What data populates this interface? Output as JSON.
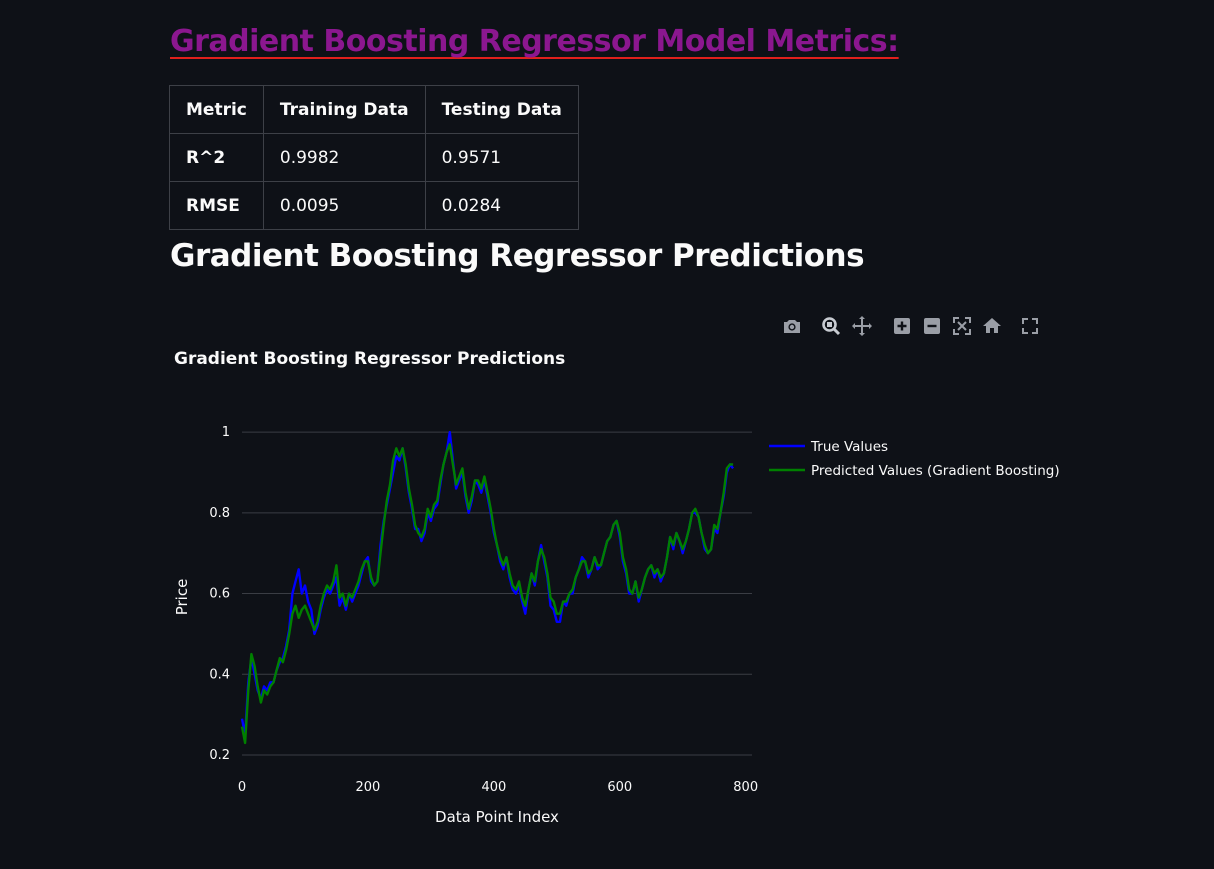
{
  "heading": "Gradient Boosting Regressor Model Metrics:",
  "metrics_table": {
    "headers": [
      "Metric",
      "Training Data",
      "Testing Data"
    ],
    "rows": [
      [
        "R^2",
        "0.9982",
        "0.9571"
      ],
      [
        "RMSE",
        "0.0095",
        "0.0284"
      ]
    ]
  },
  "subheading": "Gradient Boosting Regressor Predictions",
  "modebar": {
    "icons": [
      "camera-icon",
      "zoom-icon",
      "pan-icon",
      "zoom-in-icon",
      "zoom-out-icon",
      "autoscale-icon",
      "home-icon",
      "fullscreen-icon"
    ]
  },
  "colors": {
    "background": "#0e1117",
    "heading": "#8b178f",
    "heading_underline": "#e0201c",
    "true_series": "#0000ff",
    "pred_series": "#008000",
    "grid": "#3a3d44"
  },
  "chart_data": {
    "type": "line",
    "title": "Gradient Boosting Regressor Predictions",
    "xlabel": "Data Point Index",
    "ylabel": "Price",
    "xlim": [
      0,
      810
    ],
    "ylim": [
      0.2,
      1.03
    ],
    "xticks": [
      0,
      200,
      400,
      600,
      800
    ],
    "yticks": [
      0.2,
      0.4,
      0.6,
      0.8,
      1
    ],
    "grid": "horizontal",
    "legend_placement": "top-right-outside",
    "series": [
      {
        "name": "True Values",
        "color": "#0000ff",
        "points": [
          [
            0,
            0.29
          ],
          [
            5,
            0.25
          ],
          [
            10,
            0.38
          ],
          [
            15,
            0.44
          ],
          [
            20,
            0.4
          ],
          [
            25,
            0.36
          ],
          [
            30,
            0.34
          ],
          [
            35,
            0.37
          ],
          [
            40,
            0.36
          ],
          [
            45,
            0.38
          ],
          [
            50,
            0.38
          ],
          [
            55,
            0.41
          ],
          [
            60,
            0.43
          ],
          [
            65,
            0.44
          ],
          [
            70,
            0.47
          ],
          [
            75,
            0.51
          ],
          [
            80,
            0.6
          ],
          [
            85,
            0.63
          ],
          [
            90,
            0.66
          ],
          [
            95,
            0.6
          ],
          [
            100,
            0.62
          ],
          [
            105,
            0.58
          ],
          [
            110,
            0.56
          ],
          [
            115,
            0.5
          ],
          [
            120,
            0.52
          ],
          [
            125,
            0.56
          ],
          [
            130,
            0.59
          ],
          [
            135,
            0.61
          ],
          [
            140,
            0.6
          ],
          [
            145,
            0.62
          ],
          [
            150,
            0.64
          ],
          [
            155,
            0.57
          ],
          [
            160,
            0.59
          ],
          [
            165,
            0.56
          ],
          [
            170,
            0.6
          ],
          [
            175,
            0.58
          ],
          [
            180,
            0.6
          ],
          [
            185,
            0.62
          ],
          [
            190,
            0.65
          ],
          [
            195,
            0.68
          ],
          [
            200,
            0.69
          ],
          [
            205,
            0.63
          ],
          [
            210,
            0.62
          ],
          [
            215,
            0.63
          ],
          [
            220,
            0.72
          ],
          [
            225,
            0.78
          ],
          [
            230,
            0.82
          ],
          [
            235,
            0.86
          ],
          [
            240,
            0.9
          ],
          [
            245,
            0.94
          ],
          [
            250,
            0.93
          ],
          [
            255,
            0.96
          ],
          [
            260,
            0.91
          ],
          [
            265,
            0.85
          ],
          [
            270,
            0.81
          ],
          [
            275,
            0.76
          ],
          [
            280,
            0.76
          ],
          [
            285,
            0.73
          ],
          [
            290,
            0.75
          ],
          [
            295,
            0.8
          ],
          [
            300,
            0.78
          ],
          [
            305,
            0.81
          ],
          [
            310,
            0.82
          ],
          [
            315,
            0.87
          ],
          [
            320,
            0.92
          ],
          [
            325,
            0.95
          ],
          [
            330,
            1.0
          ],
          [
            335,
            0.93
          ],
          [
            340,
            0.86
          ],
          [
            345,
            0.88
          ],
          [
            350,
            0.9
          ],
          [
            355,
            0.84
          ],
          [
            360,
            0.8
          ],
          [
            365,
            0.83
          ],
          [
            370,
            0.88
          ],
          [
            375,
            0.87
          ],
          [
            380,
            0.85
          ],
          [
            385,
            0.88
          ],
          [
            390,
            0.84
          ],
          [
            395,
            0.8
          ],
          [
            400,
            0.75
          ],
          [
            405,
            0.72
          ],
          [
            410,
            0.68
          ],
          [
            415,
            0.66
          ],
          [
            420,
            0.69
          ],
          [
            425,
            0.64
          ],
          [
            430,
            0.61
          ],
          [
            435,
            0.6
          ],
          [
            440,
            0.62
          ],
          [
            445,
            0.58
          ],
          [
            450,
            0.55
          ],
          [
            455,
            0.61
          ],
          [
            460,
            0.65
          ],
          [
            465,
            0.62
          ],
          [
            470,
            0.68
          ],
          [
            475,
            0.72
          ],
          [
            480,
            0.68
          ],
          [
            485,
            0.64
          ],
          [
            490,
            0.57
          ],
          [
            495,
            0.56
          ],
          [
            500,
            0.53
          ],
          [
            505,
            0.53
          ],
          [
            510,
            0.58
          ],
          [
            515,
            0.57
          ],
          [
            520,
            0.6
          ],
          [
            525,
            0.6
          ],
          [
            530,
            0.64
          ],
          [
            535,
            0.66
          ],
          [
            540,
            0.69
          ],
          [
            545,
            0.68
          ],
          [
            550,
            0.64
          ],
          [
            555,
            0.66
          ],
          [
            560,
            0.69
          ],
          [
            565,
            0.66
          ],
          [
            570,
            0.67
          ],
          [
            575,
            0.7
          ],
          [
            580,
            0.73
          ],
          [
            585,
            0.74
          ],
          [
            590,
            0.77
          ],
          [
            595,
            0.78
          ],
          [
            600,
            0.74
          ],
          [
            605,
            0.68
          ],
          [
            610,
            0.65
          ],
          [
            615,
            0.6
          ],
          [
            620,
            0.6
          ],
          [
            625,
            0.63
          ],
          [
            630,
            0.58
          ],
          [
            635,
            0.61
          ],
          [
            640,
            0.64
          ],
          [
            645,
            0.66
          ],
          [
            650,
            0.67
          ],
          [
            655,
            0.64
          ],
          [
            660,
            0.66
          ],
          [
            665,
            0.63
          ],
          [
            670,
            0.65
          ],
          [
            675,
            0.69
          ],
          [
            680,
            0.74
          ],
          [
            685,
            0.71
          ],
          [
            690,
            0.75
          ],
          [
            695,
            0.73
          ],
          [
            700,
            0.7
          ],
          [
            705,
            0.73
          ],
          [
            710,
            0.76
          ],
          [
            715,
            0.8
          ],
          [
            720,
            0.8
          ],
          [
            725,
            0.79
          ],
          [
            730,
            0.75
          ],
          [
            735,
            0.71
          ],
          [
            740,
            0.7
          ],
          [
            745,
            0.71
          ],
          [
            750,
            0.76
          ],
          [
            755,
            0.75
          ],
          [
            760,
            0.8
          ],
          [
            765,
            0.84
          ],
          [
            770,
            0.9
          ],
          [
            775,
            0.92
          ],
          [
            780,
            0.91
          ]
        ]
      },
      {
        "name": "Predicted Values (Gradient Boosting)",
        "color": "#008000",
        "points": [
          [
            0,
            0.27
          ],
          [
            5,
            0.23
          ],
          [
            10,
            0.36
          ],
          [
            15,
            0.45
          ],
          [
            20,
            0.42
          ],
          [
            25,
            0.37
          ],
          [
            30,
            0.33
          ],
          [
            35,
            0.36
          ],
          [
            40,
            0.35
          ],
          [
            45,
            0.37
          ],
          [
            50,
            0.38
          ],
          [
            55,
            0.41
          ],
          [
            60,
            0.44
          ],
          [
            65,
            0.43
          ],
          [
            70,
            0.46
          ],
          [
            75,
            0.5
          ],
          [
            80,
            0.55
          ],
          [
            85,
            0.57
          ],
          [
            90,
            0.54
          ],
          [
            95,
            0.56
          ],
          [
            100,
            0.57
          ],
          [
            105,
            0.55
          ],
          [
            110,
            0.53
          ],
          [
            115,
            0.51
          ],
          [
            120,
            0.53
          ],
          [
            125,
            0.57
          ],
          [
            130,
            0.6
          ],
          [
            135,
            0.62
          ],
          [
            140,
            0.61
          ],
          [
            145,
            0.63
          ],
          [
            150,
            0.67
          ],
          [
            155,
            0.59
          ],
          [
            160,
            0.6
          ],
          [
            165,
            0.57
          ],
          [
            170,
            0.6
          ],
          [
            175,
            0.59
          ],
          [
            180,
            0.61
          ],
          [
            185,
            0.63
          ],
          [
            190,
            0.66
          ],
          [
            195,
            0.68
          ],
          [
            200,
            0.68
          ],
          [
            205,
            0.64
          ],
          [
            210,
            0.62
          ],
          [
            215,
            0.63
          ],
          [
            220,
            0.7
          ],
          [
            225,
            0.77
          ],
          [
            230,
            0.83
          ],
          [
            235,
            0.87
          ],
          [
            240,
            0.93
          ],
          [
            245,
            0.96
          ],
          [
            250,
            0.94
          ],
          [
            255,
            0.96
          ],
          [
            260,
            0.92
          ],
          [
            265,
            0.86
          ],
          [
            270,
            0.82
          ],
          [
            275,
            0.77
          ],
          [
            280,
            0.75
          ],
          [
            285,
            0.74
          ],
          [
            290,
            0.76
          ],
          [
            295,
            0.81
          ],
          [
            300,
            0.79
          ],
          [
            305,
            0.82
          ],
          [
            310,
            0.83
          ],
          [
            315,
            0.88
          ],
          [
            320,
            0.92
          ],
          [
            325,
            0.95
          ],
          [
            330,
            0.97
          ],
          [
            335,
            0.92
          ],
          [
            340,
            0.87
          ],
          [
            345,
            0.89
          ],
          [
            350,
            0.91
          ],
          [
            355,
            0.85
          ],
          [
            360,
            0.81
          ],
          [
            365,
            0.84
          ],
          [
            370,
            0.88
          ],
          [
            375,
            0.88
          ],
          [
            380,
            0.86
          ],
          [
            385,
            0.89
          ],
          [
            390,
            0.85
          ],
          [
            395,
            0.81
          ],
          [
            400,
            0.76
          ],
          [
            405,
            0.72
          ],
          [
            410,
            0.69
          ],
          [
            415,
            0.67
          ],
          [
            420,
            0.69
          ],
          [
            425,
            0.65
          ],
          [
            430,
            0.62
          ],
          [
            435,
            0.61
          ],
          [
            440,
            0.63
          ],
          [
            445,
            0.59
          ],
          [
            450,
            0.57
          ],
          [
            455,
            0.61
          ],
          [
            460,
            0.65
          ],
          [
            465,
            0.63
          ],
          [
            470,
            0.68
          ],
          [
            475,
            0.71
          ],
          [
            480,
            0.69
          ],
          [
            485,
            0.65
          ],
          [
            490,
            0.59
          ],
          [
            495,
            0.58
          ],
          [
            500,
            0.55
          ],
          [
            505,
            0.55
          ],
          [
            510,
            0.58
          ],
          [
            515,
            0.58
          ],
          [
            520,
            0.6
          ],
          [
            525,
            0.61
          ],
          [
            530,
            0.64
          ],
          [
            535,
            0.66
          ],
          [
            540,
            0.68
          ],
          [
            545,
            0.68
          ],
          [
            550,
            0.65
          ],
          [
            555,
            0.66
          ],
          [
            560,
            0.69
          ],
          [
            565,
            0.67
          ],
          [
            570,
            0.67
          ],
          [
            575,
            0.7
          ],
          [
            580,
            0.73
          ],
          [
            585,
            0.74
          ],
          [
            590,
            0.77
          ],
          [
            595,
            0.78
          ],
          [
            600,
            0.75
          ],
          [
            605,
            0.69
          ],
          [
            610,
            0.66
          ],
          [
            615,
            0.61
          ],
          [
            620,
            0.6
          ],
          [
            625,
            0.63
          ],
          [
            630,
            0.59
          ],
          [
            635,
            0.61
          ],
          [
            640,
            0.64
          ],
          [
            645,
            0.66
          ],
          [
            650,
            0.67
          ],
          [
            655,
            0.65
          ],
          [
            660,
            0.66
          ],
          [
            665,
            0.64
          ],
          [
            670,
            0.65
          ],
          [
            675,
            0.69
          ],
          [
            680,
            0.74
          ],
          [
            685,
            0.72
          ],
          [
            690,
            0.75
          ],
          [
            695,
            0.73
          ],
          [
            700,
            0.71
          ],
          [
            705,
            0.73
          ],
          [
            710,
            0.76
          ],
          [
            715,
            0.8
          ],
          [
            720,
            0.81
          ],
          [
            725,
            0.79
          ],
          [
            730,
            0.75
          ],
          [
            735,
            0.72
          ],
          [
            740,
            0.7
          ],
          [
            745,
            0.71
          ],
          [
            750,
            0.77
          ],
          [
            755,
            0.76
          ],
          [
            760,
            0.8
          ],
          [
            765,
            0.85
          ],
          [
            770,
            0.91
          ],
          [
            775,
            0.92
          ],
          [
            780,
            0.92
          ]
        ]
      }
    ]
  }
}
